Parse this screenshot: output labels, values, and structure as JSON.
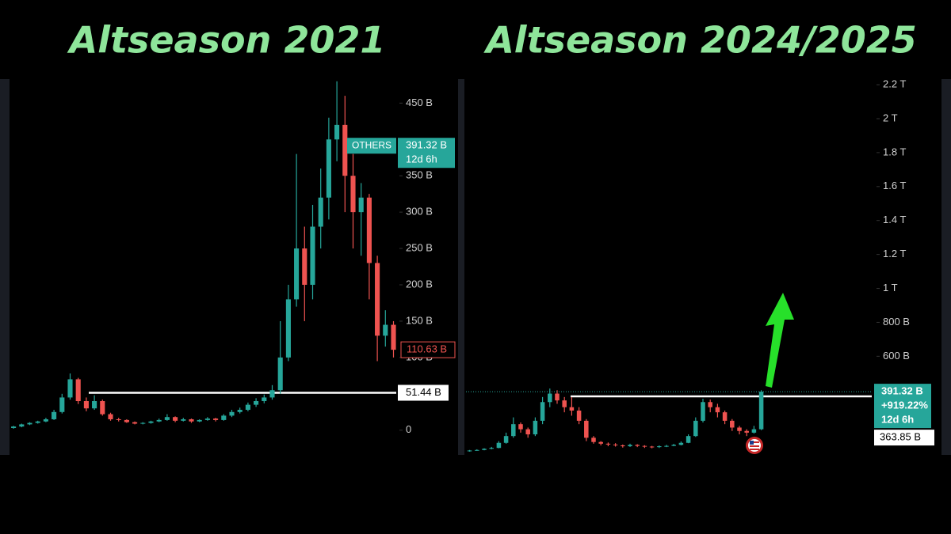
{
  "chart_data": [
    {
      "type": "candlestick",
      "title": "Altseason 2021",
      "ohlc": [
        [
          3,
          6,
          2,
          5
        ],
        [
          5,
          9,
          4,
          8
        ],
        [
          8,
          11,
          7,
          10
        ],
        [
          10,
          13,
          9,
          12
        ],
        [
          12,
          17,
          11,
          15
        ],
        [
          15,
          28,
          14,
          25
        ],
        [
          25,
          50,
          23,
          45
        ],
        [
          45,
          78,
          42,
          70
        ],
        [
          70,
          72,
          36,
          40
        ],
        [
          40,
          45,
          26,
          30
        ],
        [
          30,
          48,
          28,
          40
        ],
        [
          40,
          42,
          20,
          22
        ],
        [
          22,
          24,
          13,
          15
        ],
        [
          15,
          17,
          12,
          14
        ],
        [
          14,
          15,
          10,
          11
        ],
        [
          11,
          12,
          8,
          9
        ],
        [
          9,
          11,
          8,
          10
        ],
        [
          10,
          13,
          9,
          12
        ],
        [
          12,
          16,
          11,
          14
        ],
        [
          14,
          22,
          13,
          18
        ],
        [
          18,
          19,
          11,
          13
        ],
        [
          13,
          17,
          12,
          15
        ],
        [
          15,
          16,
          10,
          12
        ],
        [
          12,
          15,
          11,
          14
        ],
        [
          14,
          18,
          13,
          16
        ],
        [
          16,
          17,
          12,
          14
        ],
        [
          14,
          22,
          13,
          20
        ],
        [
          20,
          28,
          18,
          25
        ],
        [
          25,
          31,
          23,
          28
        ],
        [
          28,
          38,
          26,
          35
        ],
        [
          35,
          44,
          32,
          40
        ],
        [
          40,
          49,
          37,
          45
        ],
        [
          45,
          62,
          42,
          55
        ],
        [
          55,
          150,
          50,
          100
        ],
        [
          100,
          200,
          95,
          180
        ],
        [
          180,
          380,
          170,
          250
        ],
        [
          250,
          280,
          150,
          200
        ],
        [
          200,
          310,
          180,
          280
        ],
        [
          280,
          360,
          250,
          320
        ],
        [
          320,
          430,
          290,
          400
        ],
        [
          400,
          480,
          370,
          420
        ],
        [
          420,
          460,
          300,
          350
        ],
        [
          350,
          380,
          250,
          300
        ],
        [
          300,
          340,
          240,
          320
        ],
        [
          320,
          325,
          180,
          230
        ],
        [
          230,
          240,
          95,
          130
        ],
        [
          130,
          165,
          115,
          145
        ],
        [
          145,
          150,
          100,
          110.63
        ]
      ],
      "up_color": "#26a69a",
      "down_color": "#ef5350",
      "ylim": [
        -34,
        483
      ],
      "yticks": [
        {
          "value": 0,
          "label": "0"
        },
        {
          "value": 100,
          "label": "100 B"
        },
        {
          "value": 150,
          "label": "150 B"
        },
        {
          "value": 200,
          "label": "200 B"
        },
        {
          "value": 250,
          "label": "250 B"
        },
        {
          "value": 300,
          "label": "300 B"
        },
        {
          "value": 350,
          "label": "350 B"
        },
        {
          "value": 450,
          "label": "450 B"
        }
      ],
      "level": {
        "value": 51.44,
        "label": "51.44 B"
      },
      "last": {
        "value": 110.63,
        "label": "110.63 B"
      },
      "tag": {
        "name": "OTHERS",
        "value": 391.32,
        "label": "391.32 B",
        "countdown": "12d 6h"
      }
    },
    {
      "type": "candlestick",
      "title": "Altseason 2024/2025",
      "ohlc": [
        [
          40,
          48,
          38,
          45
        ],
        [
          45,
          52,
          43,
          48
        ],
        [
          48,
          58,
          46,
          55
        ],
        [
          55,
          66,
          52,
          60
        ],
        [
          60,
          100,
          58,
          90
        ],
        [
          90,
          150,
          85,
          130
        ],
        [
          130,
          240,
          120,
          200
        ],
        [
          200,
          210,
          150,
          170
        ],
        [
          170,
          180,
          120,
          140
        ],
        [
          140,
          240,
          130,
          220
        ],
        [
          220,
          360,
          200,
          330
        ],
        [
          330,
          410,
          300,
          380
        ],
        [
          380,
          400,
          320,
          340
        ],
        [
          340,
          360,
          270,
          300
        ],
        [
          300,
          360,
          250,
          280
        ],
        [
          280,
          300,
          200,
          220
        ],
        [
          220,
          230,
          100,
          120
        ],
        [
          120,
          130,
          85,
          95
        ],
        [
          95,
          100,
          75,
          85
        ],
        [
          85,
          92,
          70,
          80
        ],
        [
          80,
          88,
          68,
          75
        ],
        [
          75,
          80,
          62,
          70
        ],
        [
          70,
          85,
          66,
          78
        ],
        [
          78,
          82,
          65,
          72
        ],
        [
          72,
          76,
          60,
          68
        ],
        [
          68,
          72,
          58,
          65
        ],
        [
          65,
          75,
          60,
          70
        ],
        [
          70,
          78,
          65,
          72
        ],
        [
          72,
          84,
          70,
          78
        ],
        [
          78,
          98,
          75,
          90
        ],
        [
          90,
          140,
          88,
          130
        ],
        [
          130,
          240,
          125,
          220
        ],
        [
          220,
          350,
          210,
          330
        ],
        [
          330,
          345,
          270,
          300
        ],
        [
          300,
          320,
          240,
          270
        ],
        [
          270,
          280,
          200,
          220
        ],
        [
          220,
          230,
          160,
          180
        ],
        [
          180,
          190,
          140,
          160
        ],
        [
          160,
          170,
          130,
          150
        ],
        [
          150,
          190,
          145,
          170
        ],
        [
          170,
          400,
          165,
          391.32
        ]
      ],
      "up_color": "#26a69a",
      "down_color": "#ef5350",
      "ylim": [
        19,
        2233
      ],
      "yticks": [
        {
          "value": 600,
          "label": "600 B"
        },
        {
          "value": 800,
          "label": "800 B"
        },
        {
          "value": 1000,
          "label": "1 T"
        },
        {
          "value": 1200,
          "label": "1.2 T"
        },
        {
          "value": 1400,
          "label": "1.4 T"
        },
        {
          "value": 1600,
          "label": "1.6 T"
        },
        {
          "value": 1800,
          "label": "1.8 T"
        },
        {
          "value": 2000,
          "label": "2 T"
        },
        {
          "value": 2200,
          "label": "2.2 T"
        }
      ],
      "level": {
        "value": 363.85,
        "label": "363.85 B"
      },
      "tag": {
        "value": 391.32,
        "label": "391.32 B",
        "change": "+919.22%",
        "countdown": "12d 6h"
      }
    }
  ]
}
